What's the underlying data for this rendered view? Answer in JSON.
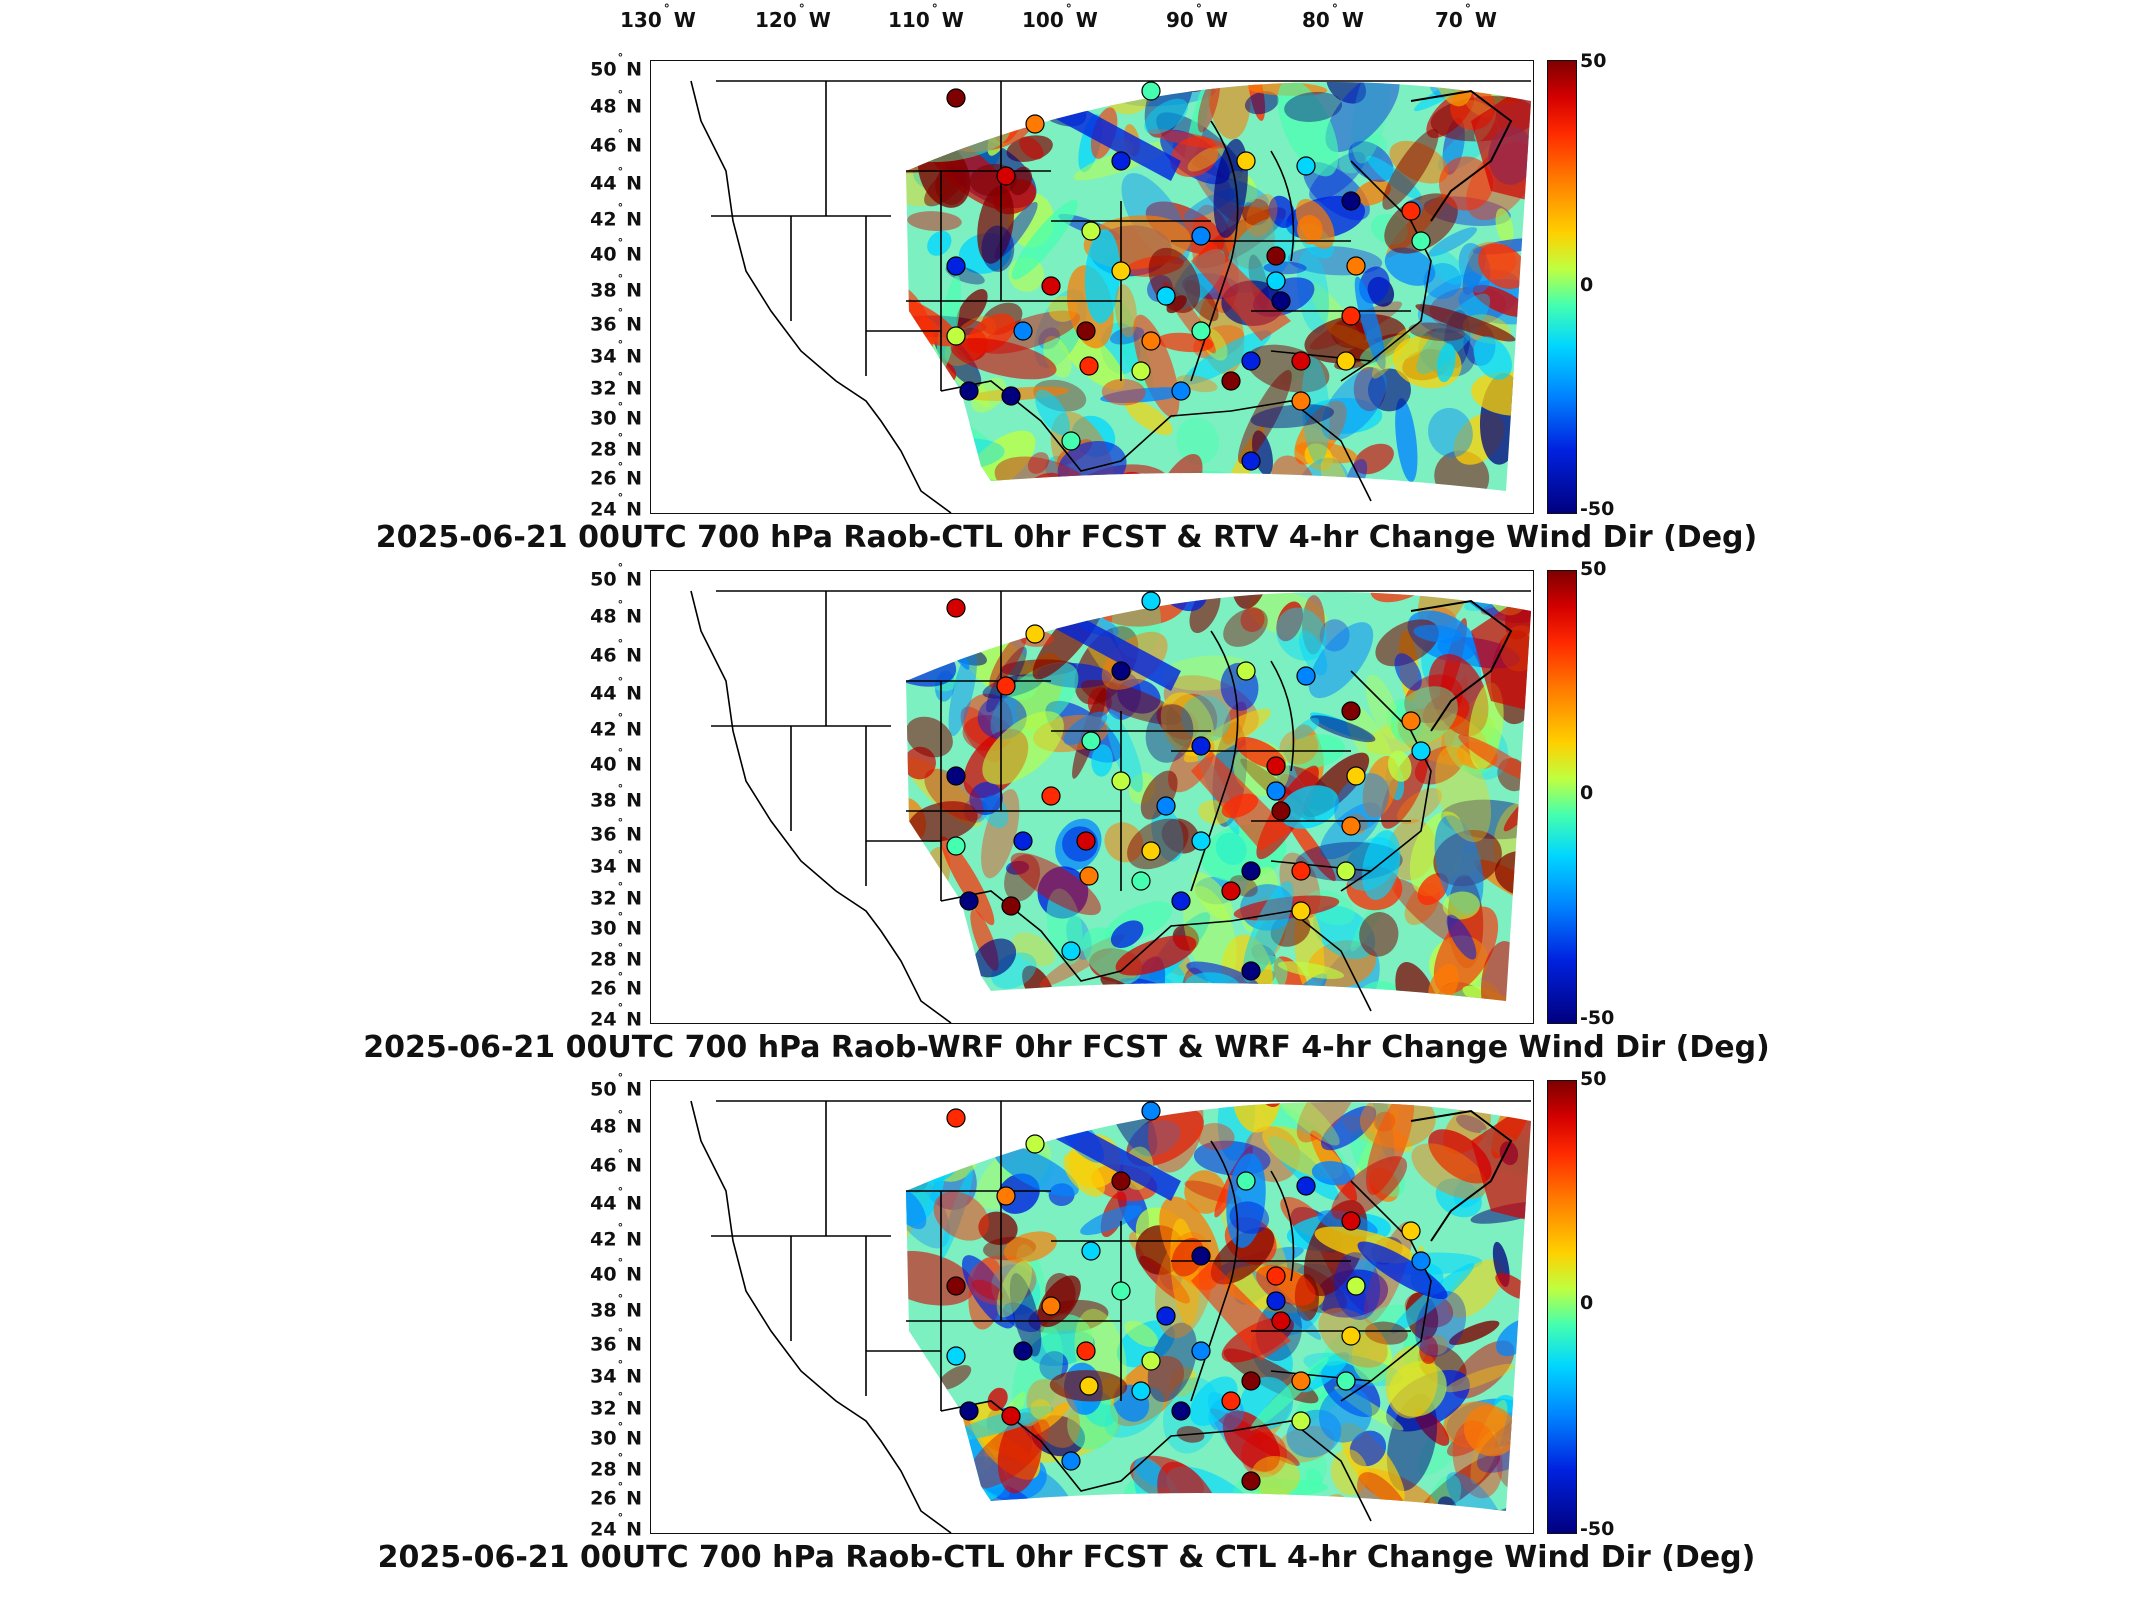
{
  "lon_labels": [
    {
      "deg": "130",
      "hem": "W"
    },
    {
      "deg": "120",
      "hem": "W"
    },
    {
      "deg": "110",
      "hem": "W"
    },
    {
      "deg": "100",
      "hem": "W"
    },
    {
      "deg": "90",
      "hem": "W"
    },
    {
      "deg": "80",
      "hem": "W"
    },
    {
      "deg": "70",
      "hem": "W"
    }
  ],
  "lat_labels": [
    {
      "deg": "50",
      "hem": "N"
    },
    {
      "deg": "48",
      "hem": "N"
    },
    {
      "deg": "46",
      "hem": "N"
    },
    {
      "deg": "44",
      "hem": "N"
    },
    {
      "deg": "42",
      "hem": "N"
    },
    {
      "deg": "40",
      "hem": "N"
    },
    {
      "deg": "38",
      "hem": "N"
    },
    {
      "deg": "36",
      "hem": "N"
    },
    {
      "deg": "34",
      "hem": "N"
    },
    {
      "deg": "32",
      "hem": "N"
    },
    {
      "deg": "30",
      "hem": "N"
    },
    {
      "deg": "28",
      "hem": "N"
    },
    {
      "deg": "26",
      "hem": "N"
    },
    {
      "deg": "24",
      "hem": "N"
    }
  ],
  "colorbar": {
    "max": "50",
    "mid": "0",
    "min": "-50"
  },
  "panels": [
    {
      "title": "2025-06-21 00UTC 700 hPa Raob-CTL 0hr FCST & RTV 4-hr Change Wind Dir (Deg)"
    },
    {
      "title": "2025-06-21 00UTC 700 hPa Raob-WRF 0hr FCST & WRF 4-hr Change Wind Dir (Deg)"
    },
    {
      "title": "2025-06-21 00UTC 700 hPa Raob-CTL 0hr FCST & CTL 4-hr Change Wind Dir (Deg)"
    }
  ],
  "colors": {
    "positive_extreme": "#7f0000",
    "neutral": "#44ffb0",
    "negative_extreme": "#00007f"
  }
}
